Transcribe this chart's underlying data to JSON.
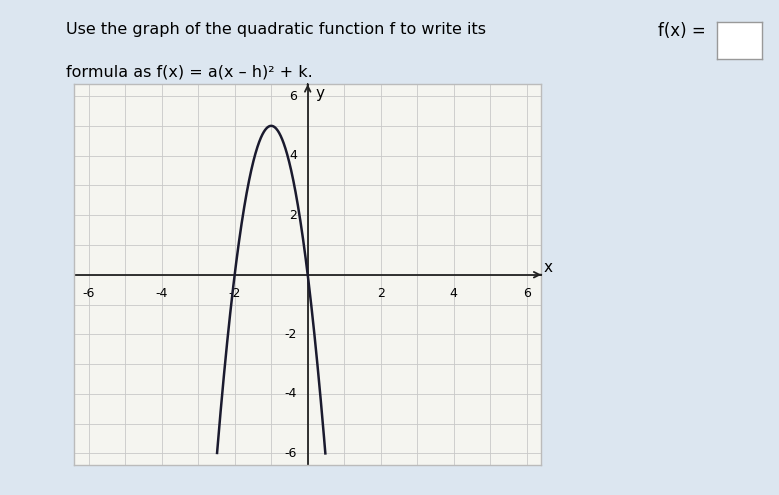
{
  "title_text": "Use the graph of the quadratic function f to write its",
  "title_text2": "formula as f(x) = a(x – h)² + k.",
  "bg_color": "#dce6f0",
  "graph_bg": "#f5f5f0",
  "graph_border": "#bbbbbb",
  "xlim": [
    -6,
    6
  ],
  "ylim": [
    -6,
    6
  ],
  "xticks": [
    -6,
    -4,
    -2,
    2,
    4,
    6
  ],
  "yticks": [
    -6,
    -4,
    -2,
    2,
    4,
    6
  ],
  "vertex_x": -1,
  "vertex_y": 5,
  "a": -5,
  "curve_color": "#1a1a2e",
  "curve_lw": 1.8,
  "grid_color": "#c8c8c8",
  "axis_color": "#222222",
  "tick_fontsize": 9,
  "label_fontsize": 11,
  "title_fontsize": 11.5
}
